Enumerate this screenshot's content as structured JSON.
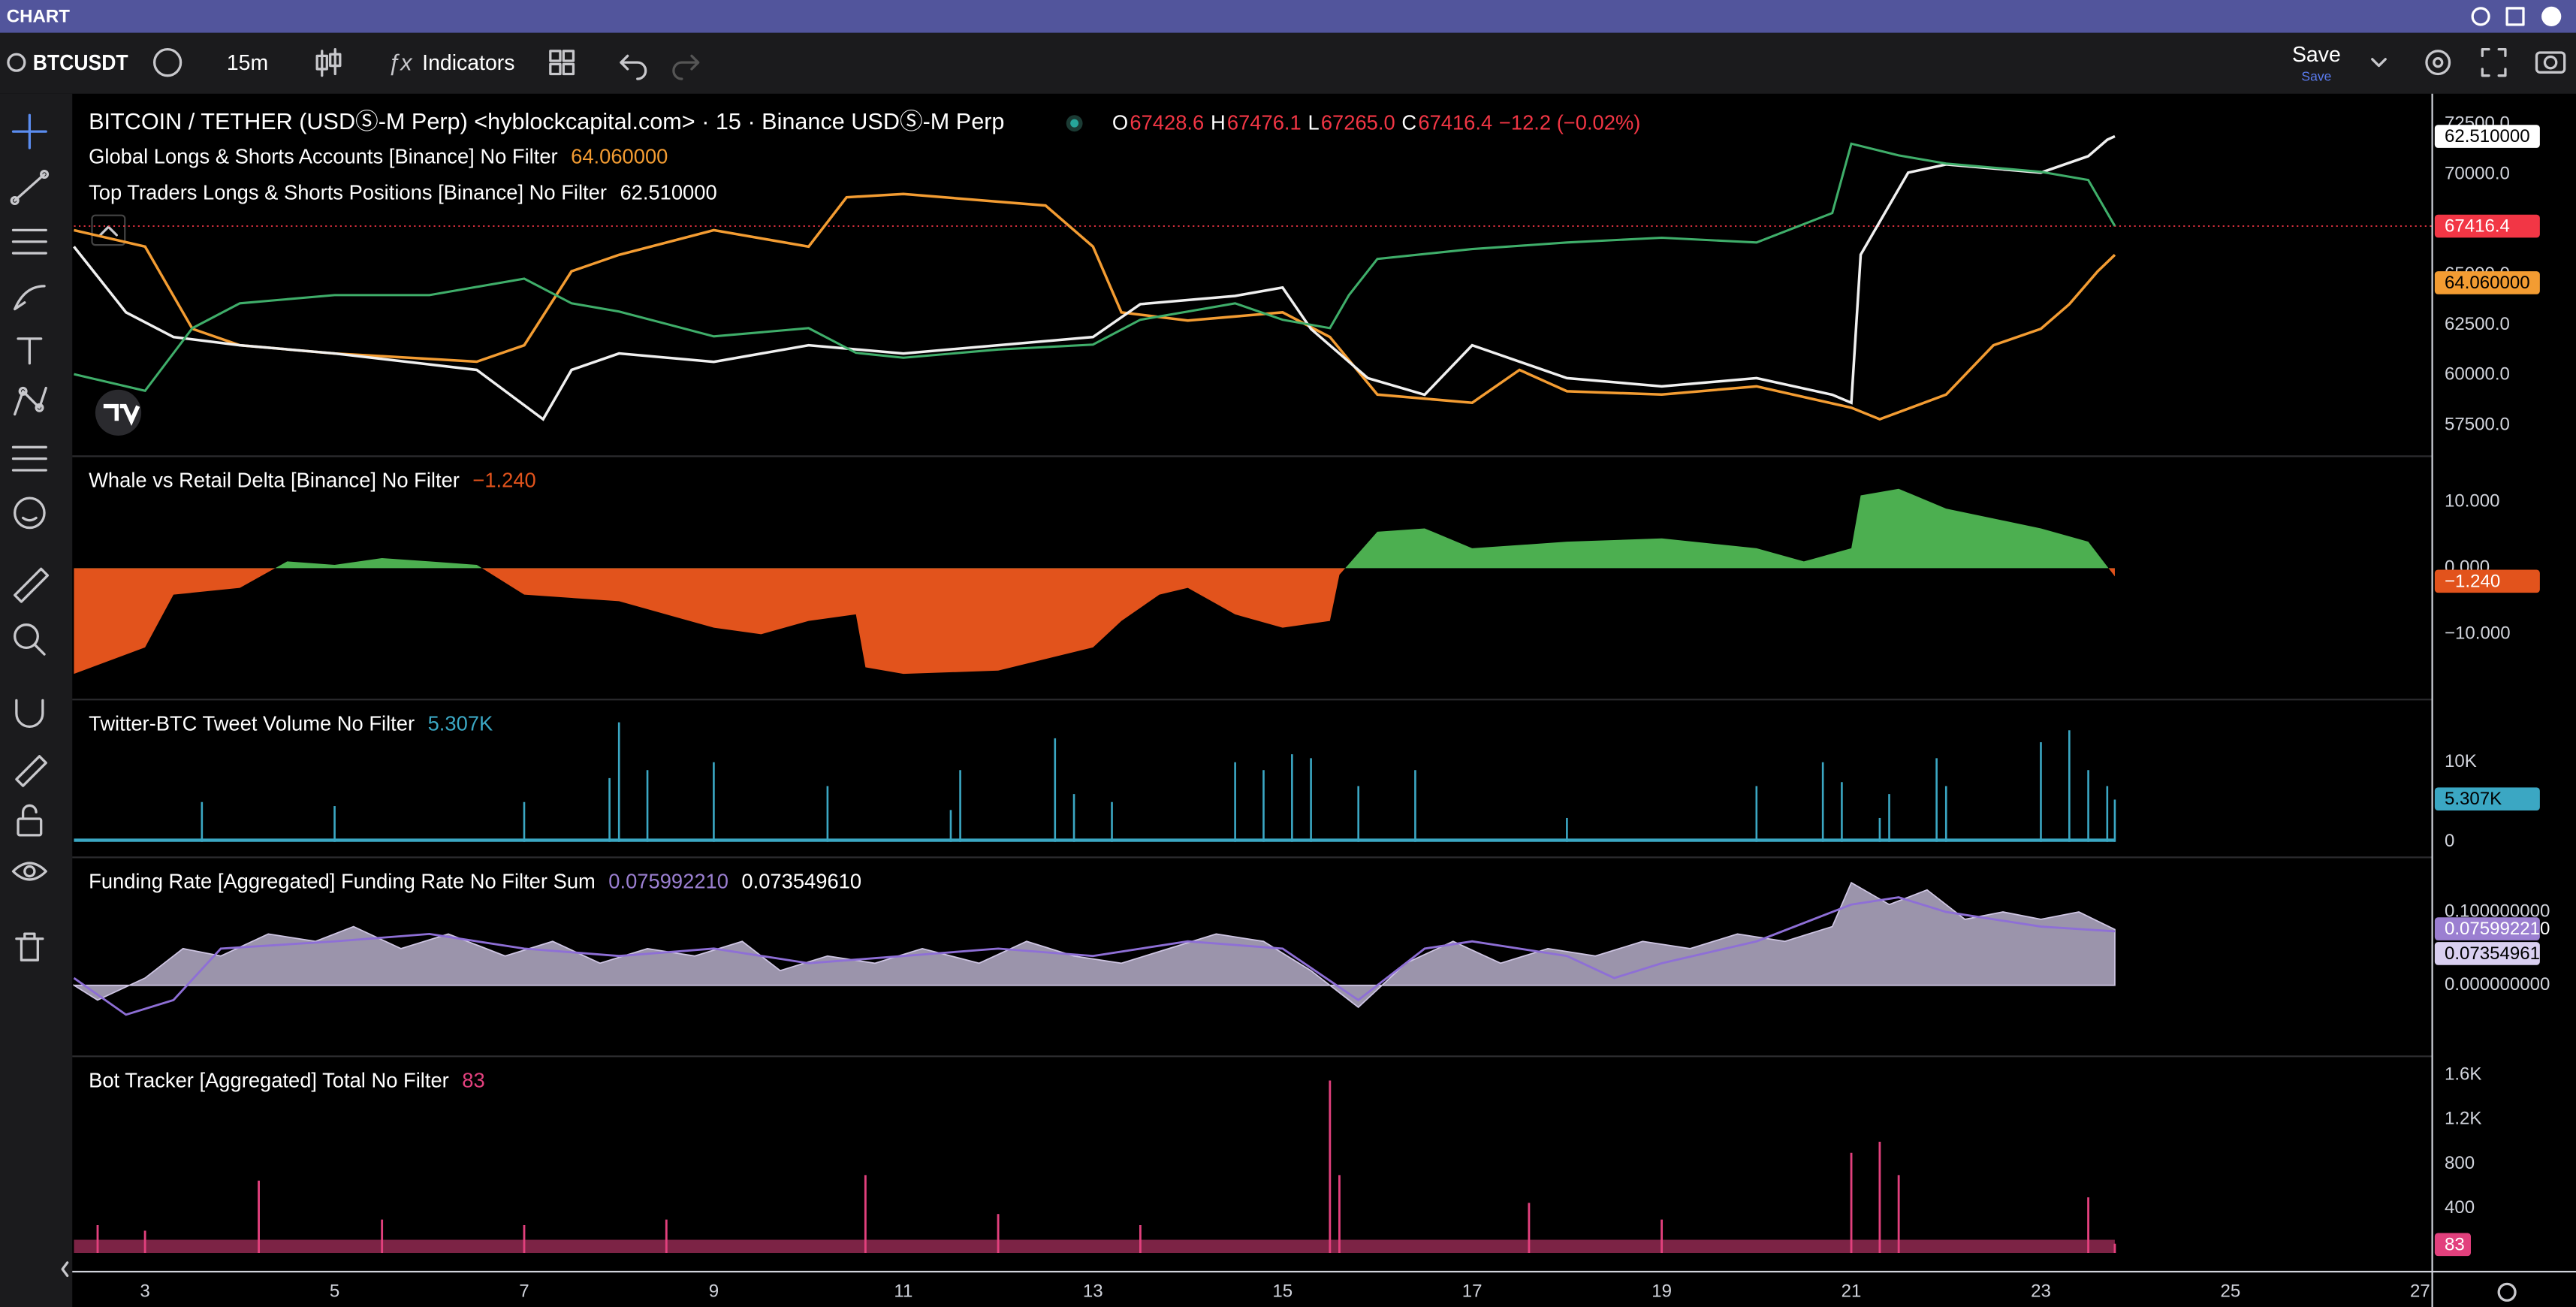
{
  "window": {
    "title": "CHART"
  },
  "toolbar": {
    "symbol": "BTCUSDT",
    "interval": "15m",
    "indicators": "Indicators",
    "save": "Save",
    "save_sub": "Save"
  },
  "time_axis": {
    "xlim": [
      2.25,
      27.12
    ],
    "xticks": [
      3,
      5,
      7,
      9,
      11,
      13,
      15,
      17,
      19,
      21,
      23,
      25,
      27
    ]
  },
  "main_pane": {
    "title": "BITCOIN / TETHER (USDⓈ-M Perp) <hyblockcapital.com> · 15 · Binance USDⓈ-M Perp",
    "ohlc": [
      {
        "key": "O",
        "value": "67428.6"
      },
      {
        "key": "H",
        "value": "67476.1"
      },
      {
        "key": "L",
        "value": "67265.0"
      },
      {
        "key": "C",
        "value": "67416.4"
      }
    ],
    "change": "−12.2 (−0.02%)",
    "ylim": [
      56000,
      73600
    ],
    "yticks": [
      {
        "value": 57500,
        "label": "57500.0"
      },
      {
        "value": 60000,
        "label": "60000.0"
      },
      {
        "value": 62500,
        "label": "62500.0"
      },
      {
        "value": 65000,
        "label": "65000.0"
      },
      {
        "value": 67500,
        "label": "67500.0"
      },
      {
        "value": 70000,
        "label": "70000.0"
      },
      {
        "value": 72500,
        "label": "72500.0"
      }
    ],
    "price": {
      "color": "#3fae6a",
      "last_label": "67416.4",
      "last_color": "#f23645",
      "x": [
        2.25,
        3,
        3.5,
        4,
        5,
        6,
        7,
        7.5,
        8,
        9,
        10,
        10.5,
        11,
        12,
        13,
        13.5,
        14,
        14.5,
        15,
        15.5,
        15.7,
        16,
        17,
        18,
        19,
        20,
        20.8,
        21,
        21.5,
        22,
        23,
        23.5,
        23.78
      ],
      "values": [
        60040,
        59220,
        62340,
        63570,
        63980,
        63980,
        64800,
        63570,
        63160,
        61930,
        62340,
        61110,
        60860,
        61270,
        61520,
        62750,
        63160,
        63570,
        62750,
        62340,
        63980,
        65780,
        66270,
        66600,
        66840,
        66600,
        68070,
        71520,
        70940,
        70530,
        70120,
        69710,
        67416.4
      ]
    },
    "indicators": [
      {
        "name": "Global Longs & Shorts Accounts [Binance] No Filter",
        "value_label": "64.060000",
        "color": "#f39c32",
        "ylim": [
          50,
          74.78
        ],
        "x": [
          2.25,
          3,
          3.5,
          4,
          5,
          6.5,
          7,
          7.5,
          8,
          9,
          9.5,
          10,
          10.4,
          11,
          12.5,
          13,
          13.3,
          14,
          15,
          15.5,
          16,
          17,
          17.5,
          18,
          19,
          20,
          21,
          21.3,
          22,
          22.5,
          23,
          23.3,
          23.6,
          23.78
        ],
        "values": [
          65.79,
          64.64,
          58.87,
          57.72,
          57.15,
          56.57,
          57.72,
          62.91,
          64.06,
          65.79,
          65.21,
          64.64,
          68.1,
          68.33,
          67.52,
          64.64,
          60.03,
          59.45,
          60.03,
          58.3,
          54.26,
          53.69,
          55.99,
          54.5,
          54.26,
          54.84,
          53.34,
          52.54,
          54.26,
          57.72,
          58.87,
          60.6,
          62.91,
          64.06
        ]
      },
      {
        "name": "Top Traders Longs & Shorts Positions [Binance] No Filter",
        "value_label": "62.510000",
        "color": "#f0f0f0",
        "ylim": [
          50,
          63.86
        ],
        "x": [
          2.25,
          2.8,
          3.3,
          4,
          5,
          6.5,
          7.2,
          7.5,
          8,
          9,
          10,
          11,
          12,
          13,
          13.5,
          14.5,
          15,
          15.3,
          15.9,
          16.5,
          17,
          18,
          19,
          20,
          20.8,
          21,
          21.1,
          21.6,
          22,
          23,
          23.5,
          23.7,
          23.78
        ],
        "values": [
          58.19,
          55.61,
          54.64,
          54.32,
          54,
          53.35,
          51.42,
          53.35,
          54,
          53.67,
          54.32,
          54,
          54.32,
          54.64,
          55.93,
          56.25,
          56.58,
          54.96,
          53.03,
          52.38,
          54.32,
          53.03,
          52.71,
          53.03,
          52.38,
          52.06,
          57.87,
          61.09,
          61.41,
          61.09,
          61.73,
          62.38,
          62.51
        ]
      }
    ]
  },
  "delta_pane": {
    "title": "Whale vs Retail Delta [Binance] No Filter",
    "value_label": "−1.240",
    "up_color": "#4caf50",
    "down_color": "#e2531c",
    "ylim": [
      -19.75,
      16.8
    ],
    "yticks": [
      {
        "value": 10,
        "label": "10.000"
      },
      {
        "value": 0,
        "label": "0.000"
      },
      {
        "value": -10,
        "label": "−10.000"
      }
    ],
    "x": [
      2.25,
      3,
      3.3,
      4,
      4.5,
      5,
      5.5,
      6,
      6.5,
      7,
      8,
      9,
      9.5,
      10,
      10.5,
      10.6,
      11,
      12,
      13,
      13.3,
      13.7,
      14,
      14.5,
      15,
      15.5,
      15.6,
      16,
      16.5,
      17,
      18,
      19,
      20,
      20.5,
      21,
      21.1,
      21.5,
      22,
      23,
      23.5,
      23.78
    ],
    "values": [
      -16,
      -12,
      -4,
      -3,
      1,
      0.5,
      1.5,
      1,
      0.5,
      -4,
      -5,
      -9,
      -10,
      -8,
      -7,
      -15,
      -16,
      -15.5,
      -12,
      -8,
      -4,
      -3,
      -7,
      -9,
      -8,
      -1,
      5.5,
      6,
      3,
      4,
      4.5,
      3,
      1,
      3,
      11,
      12,
      9,
      6,
      4,
      -1.24
    ]
  },
  "tweet_pane": {
    "title": "Twitter-BTC Tweet Volume No Filter",
    "value_label": "5.307K",
    "color": "#3ba7c3",
    "ylim": [
      -1840,
      17760
    ],
    "yticks": [
      {
        "value": 10000,
        "label": "10K"
      },
      0
    ],
    "x": [
      3.6,
      5,
      7,
      7.9,
      8,
      8.3,
      9,
      10.2,
      11.5,
      11.6,
      12.6,
      12.8,
      13.2,
      14.5,
      14.8,
      15.1,
      15.3,
      15.8,
      16.4,
      18,
      20,
      20.7,
      20.9,
      21.3,
      21.4,
      21.9,
      22,
      23,
      23.3,
      23.5,
      23.7,
      23.78
    ],
    "values": [
      5000,
      4500,
      5000,
      8000,
      15000,
      9000,
      10000,
      7000,
      4000,
      9000,
      13000,
      6000,
      5000,
      10000,
      9000,
      11000,
      10500,
      7000,
      9000,
      3000,
      7000,
      10000,
      7500,
      3000,
      6000,
      10500,
      7000,
      12500,
      14000,
      9000,
      7000,
      5307
    ]
  },
  "funding_pane": {
    "title": "Funding Rate [Aggregated] Funding Rate No Filter Sum",
    "ylim": [
      -0.0956,
      0.1733
    ],
    "yticks": [
      {
        "value": 0.1,
        "label": "0.100000000"
      },
      {
        "value": 0,
        "label": "0.000000000"
      }
    ],
    "area": {
      "value_label": "0.075992210",
      "color": "#9b7fd1",
      "fill": "#cfc6e4",
      "x": [
        2.25,
        2.5,
        3,
        3.4,
        3.8,
        4.3,
        4.8,
        5.2,
        5.7,
        6.2,
        6.8,
        7.3,
        7.8,
        8.3,
        8.8,
        9.3,
        9.7,
        10.2,
        10.7,
        11.2,
        11.8,
        12.3,
        12.8,
        13.3,
        13.8,
        14.3,
        14.8,
        15.3,
        15.8,
        16.3,
        16.8,
        17.3,
        17.8,
        18.3,
        18.8,
        19.3,
        19.8,
        20.3,
        20.8,
        21,
        21.4,
        21.8,
        22.2,
        22.6,
        23,
        23.4,
        23.78
      ],
      "values": [
        0,
        -0.02,
        0.01,
        0.05,
        0.04,
        0.07,
        0.06,
        0.08,
        0.05,
        0.07,
        0.04,
        0.06,
        0.03,
        0.05,
        0.04,
        0.06,
        0.02,
        0.04,
        0.03,
        0.05,
        0.03,
        0.06,
        0.04,
        0.03,
        0.05,
        0.07,
        0.06,
        0.02,
        -0.03,
        0.03,
        0.06,
        0.03,
        0.05,
        0.04,
        0.06,
        0.05,
        0.07,
        0.06,
        0.08,
        0.14,
        0.11,
        0.13,
        0.09,
        0.1,
        0.09,
        0.1,
        0.07599221
      ]
    },
    "line": {
      "value_label": "0.073549610",
      "color": "#8e6fd6",
      "x": [
        2.25,
        2.8,
        3.3,
        3.8,
        5,
        6,
        7,
        8,
        9,
        10,
        11,
        12,
        13,
        14,
        15,
        15.8,
        16.5,
        17,
        18,
        18.5,
        19,
        20,
        21,
        21.5,
        22,
        23,
        23.78
      ],
      "values": [
        0.01,
        -0.04,
        -0.02,
        0.05,
        0.06,
        0.07,
        0.05,
        0.04,
        0.05,
        0.03,
        0.04,
        0.05,
        0.04,
        0.06,
        0.05,
        -0.02,
        0.05,
        0.06,
        0.04,
        0.01,
        0.03,
        0.06,
        0.11,
        0.12,
        0.1,
        0.08,
        0.07354961
      ]
    }
  },
  "bot_pane": {
    "title": "Bot Tracker [Aggregated] Total No Filter",
    "value_label": "83",
    "color": "#e2407d",
    "ylim": [
      -161,
      1761
    ],
    "yticks": [
      400,
      800,
      {
        "value": 1200,
        "label": "1.2K"
      },
      {
        "value": 1600,
        "label": "1.6K"
      }
    ],
    "x": [
      2.5,
      3,
      4.2,
      5.5,
      7,
      8.5,
      10.6,
      12,
      13.5,
      15.5,
      15.6,
      17.6,
      19,
      21,
      21.3,
      21.5,
      23.5,
      23.78
    ],
    "values": [
      250,
      200,
      650,
      300,
      250,
      300,
      700,
      350,
      250,
      1550,
      700,
      450,
      300,
      900,
      1000,
      700,
      500,
      83
    ]
  }
}
